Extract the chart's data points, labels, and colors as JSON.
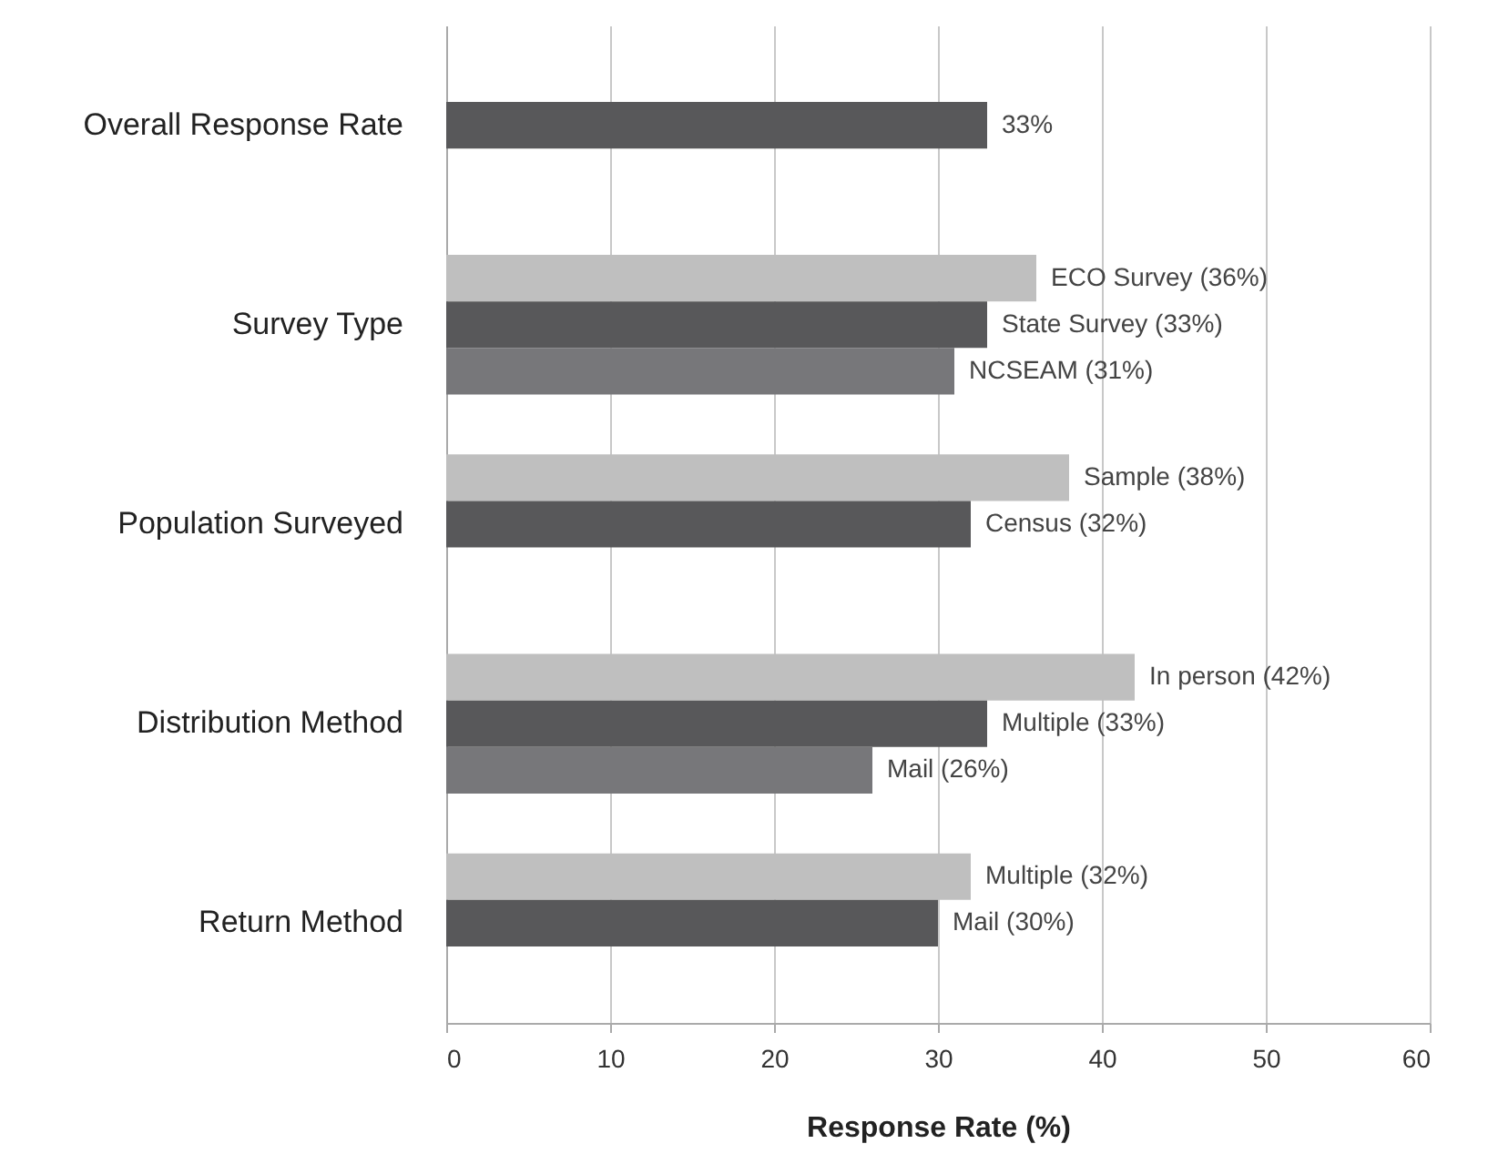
{
  "chart_data": {
    "type": "bar",
    "orientation": "horizontal",
    "xlabel": "Response Rate (%)",
    "categories": [
      "Overall Response Rate",
      "Survey Type",
      "Population Surveyed",
      "Distribution Method",
      "Return Method"
    ],
    "series": [
      {
        "color": "#bfbfbf",
        "values": [
          null,
          36,
          38,
          42,
          32
        ],
        "value_labels": [
          null,
          "ECO Survey (36%)",
          "Sample (38%)",
          "In person (42%)",
          "Multiple (32%)"
        ]
      },
      {
        "color": "#58585a",
        "values": [
          33,
          33,
          32,
          33,
          30
        ],
        "value_labels": [
          "33%",
          "State Survey (33%)",
          "Census (32%)",
          "Multiple (33%)",
          "Mail (30%)"
        ]
      },
      {
        "color": "#77777a",
        "values": [
          null,
          31,
          null,
          26,
          null
        ],
        "value_labels": [
          null,
          "NCSEAM (31%)",
          null,
          "Mail (26%)",
          null
        ]
      }
    ],
    "xlim": [
      0,
      60
    ],
    "xticks": [
      0,
      10,
      20,
      30,
      40,
      50,
      60
    ],
    "grid": "x"
  }
}
